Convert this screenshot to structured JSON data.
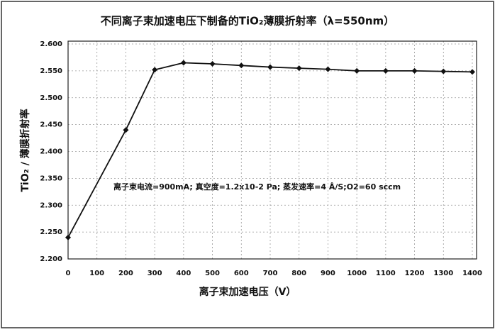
{
  "chart_data": {
    "type": "line",
    "title": "不同离子束加速电压下制备的TiO₂薄膜折射率（λ=550nm）",
    "xlabel": "离子束加速电压（V）",
    "ylabel": "TiO₂ / 薄膜折射率",
    "annotation": "离子束电流=900mA; 真空度=1.2x10-2 Pa; 蒸发速率=4 Å/S;O2=60 sccm",
    "x": [
      0,
      200,
      300,
      400,
      500,
      600,
      700,
      800,
      900,
      1000,
      1100,
      1200,
      1300,
      1400
    ],
    "series": [
      {
        "color": "#111111",
        "values": [
          2.24,
          2.44,
          2.552,
          2.565,
          2.563,
          2.56,
          2.557,
          2.555,
          2.553,
          2.55,
          2.55,
          2.55,
          2.549,
          2.548
        ]
      }
    ],
    "xlim": [
      0,
      1400
    ],
    "xticks": [
      0,
      100,
      200,
      300,
      400,
      500,
      600,
      700,
      800,
      900,
      1000,
      1100,
      1200,
      1300,
      1400
    ],
    "ylim": [
      2.2,
      2.6
    ],
    "yticks": [
      {
        "value": 2.2,
        "label": "2.200"
      },
      {
        "value": 2.25,
        "label": "2.250"
      },
      {
        "value": 2.3,
        "label": "2.300"
      },
      {
        "value": 2.35,
        "label": "2.350"
      },
      {
        "value": 2.4,
        "label": "2.400"
      },
      {
        "value": 2.45,
        "label": "2.450"
      },
      {
        "value": 2.5,
        "label": "2.500"
      },
      {
        "value": 2.55,
        "label": "2.550"
      },
      {
        "value": 2.6,
        "label": "2.600"
      }
    ],
    "grid": true
  }
}
